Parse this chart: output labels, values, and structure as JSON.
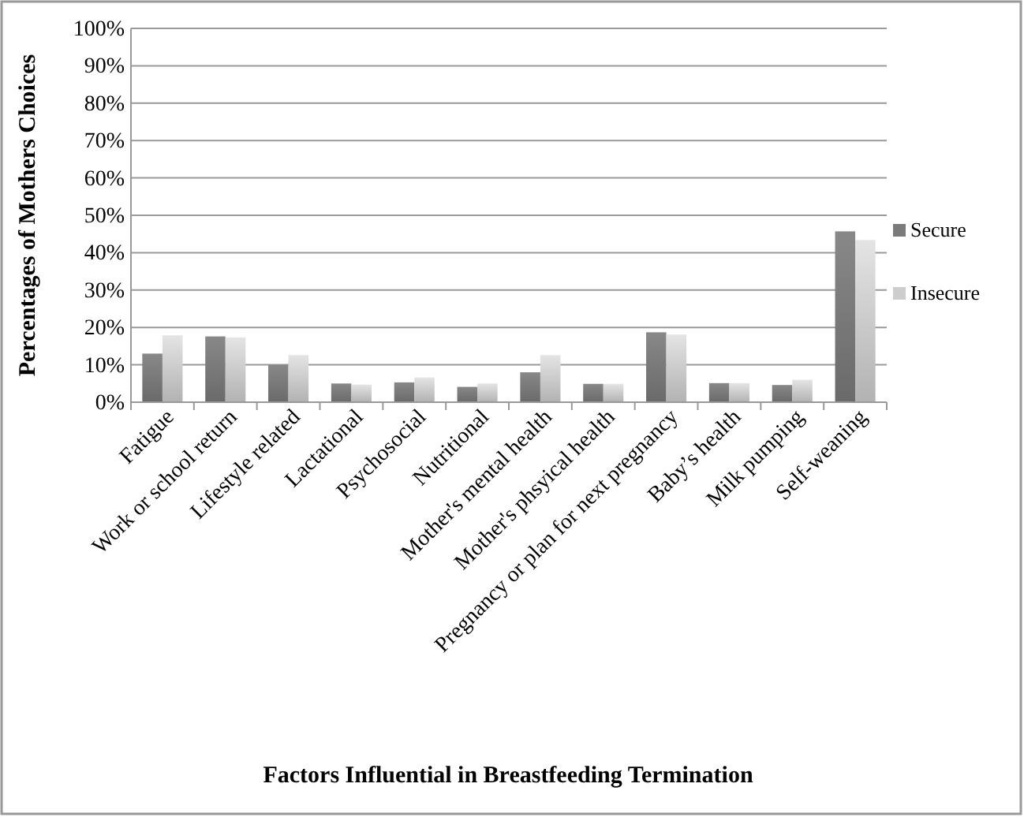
{
  "chart_data": {
    "type": "bar",
    "xlabel": "Factors Influential in Breastfeeding Termination",
    "ylabel": "Percentages of Mothers Choices",
    "categories": [
      "Fatigue",
      "Work or school return",
      "Lifestyle related",
      "Lactational",
      "Psychosocial",
      "Nutritional",
      "Mother's mental health",
      "Mother's phsyical health",
      "Pregnancy or plan for next pregnancy",
      "Baby’s health",
      "Milk pumping",
      "Self-weaning"
    ],
    "series": [
      {
        "name": "Secure",
        "color": "#7a7a7a",
        "values": [
          13,
          17.6,
          10,
          5,
          5.3,
          4.1,
          8,
          4.9,
          18.7,
          5.1,
          4.6,
          45.7
        ]
      },
      {
        "name": "Insecure",
        "color": "#cdcdcd",
        "values": [
          17.9,
          17.3,
          12.6,
          4.7,
          6.6,
          5,
          12.6,
          4.9,
          18.1,
          5.1,
          6,
          43.4
        ]
      }
    ],
    "ylim": [
      0,
      100
    ],
    "yticks": [
      {
        "value": 0,
        "label": "0%"
      },
      {
        "value": 10,
        "label": "10%"
      },
      {
        "value": 20,
        "label": "20%"
      },
      {
        "value": 30,
        "label": "30%"
      },
      {
        "value": 40,
        "label": "40%"
      },
      {
        "value": 50,
        "label": "50%"
      },
      {
        "value": 60,
        "label": "60%"
      },
      {
        "value": 70,
        "label": "70%"
      },
      {
        "value": 80,
        "label": "80%"
      },
      {
        "value": 90,
        "label": "90%"
      },
      {
        "value": 100,
        "label": "100%"
      }
    ],
    "grid": "y",
    "legend": "right"
  }
}
